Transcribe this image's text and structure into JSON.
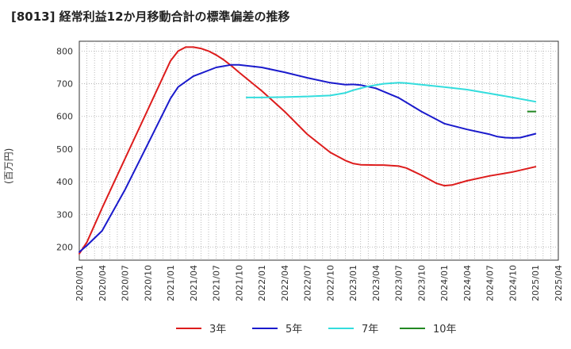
{
  "chart_data": {
    "type": "line",
    "title": "[8013]  経常利益12か月移動合計の標準偏差の推移",
    "ylabel": "(百万円)",
    "xlabel": "",
    "ylim": [
      160,
      830
    ],
    "yticks": [
      200,
      300,
      400,
      500,
      600,
      700,
      800
    ],
    "x_ticks": [
      "2020/01",
      "2020/04",
      "2020/07",
      "2020/10",
      "2021/01",
      "2021/04",
      "2021/07",
      "2021/10",
      "2022/01",
      "2022/04",
      "2022/07",
      "2022/10",
      "2023/01",
      "2023/04",
      "2023/07",
      "2023/10",
      "2024/01",
      "2024/04",
      "2024/07",
      "2024/10",
      "2025/01",
      "2025/04"
    ],
    "x_range": [
      "2020/01",
      "2025/04"
    ],
    "grid": true,
    "legend_position": "bottom",
    "series": [
      {
        "name": "3年",
        "color": "#dd1c1c",
        "points": [
          [
            "2020/01",
            180
          ],
          [
            "2020/02",
            215
          ],
          [
            "2020/04",
            320
          ],
          [
            "2020/07",
            470
          ],
          [
            "2020/10",
            620
          ],
          [
            "2021/01",
            770
          ],
          [
            "2021/02",
            800
          ],
          [
            "2021/03",
            812
          ],
          [
            "2021/04",
            812
          ],
          [
            "2021/05",
            808
          ],
          [
            "2021/06",
            800
          ],
          [
            "2021/07",
            788
          ],
          [
            "2021/08",
            773
          ],
          [
            "2021/09",
            755
          ],
          [
            "2021/10",
            735
          ],
          [
            "2022/01",
            678
          ],
          [
            "2022/04",
            615
          ],
          [
            "2022/07",
            545
          ],
          [
            "2022/10",
            490
          ],
          [
            "2022/12",
            465
          ],
          [
            "2023/01",
            456
          ],
          [
            "2023/02",
            452
          ],
          [
            "2023/04",
            451
          ],
          [
            "2023/05",
            451
          ],
          [
            "2023/07",
            448
          ],
          [
            "2023/08",
            442
          ],
          [
            "2023/10",
            420
          ],
          [
            "2023/12",
            395
          ],
          [
            "2024/01",
            388
          ],
          [
            "2024/02",
            390
          ],
          [
            "2024/04",
            403
          ],
          [
            "2024/07",
            418
          ],
          [
            "2024/10",
            430
          ],
          [
            "2025/01",
            446
          ]
        ]
      },
      {
        "name": "5年",
        "color": "#1a1acc",
        "points": [
          [
            "2020/01",
            185
          ],
          [
            "2020/02",
            205
          ],
          [
            "2020/04",
            250
          ],
          [
            "2020/07",
            375
          ],
          [
            "2020/10",
            515
          ],
          [
            "2021/01",
            655
          ],
          [
            "2021/02",
            690
          ],
          [
            "2021/04",
            723
          ],
          [
            "2021/07",
            750
          ],
          [
            "2021/09",
            758
          ],
          [
            "2021/10",
            758
          ],
          [
            "2022/01",
            750
          ],
          [
            "2022/04",
            735
          ],
          [
            "2022/07",
            718
          ],
          [
            "2022/10",
            703
          ],
          [
            "2022/12",
            697
          ],
          [
            "2023/01",
            698
          ],
          [
            "2023/02",
            696
          ],
          [
            "2023/04",
            686
          ],
          [
            "2023/07",
            657
          ],
          [
            "2023/10",
            615
          ],
          [
            "2024/01",
            578
          ],
          [
            "2024/04",
            560
          ],
          [
            "2024/07",
            545
          ],
          [
            "2024/08",
            538
          ],
          [
            "2024/09",
            535
          ],
          [
            "2024/10",
            534
          ],
          [
            "2024/11",
            535
          ],
          [
            "2025/01",
            547
          ]
        ]
      },
      {
        "name": "7年",
        "color": "#33dddd",
        "points": [
          [
            "2021/11",
            658
          ],
          [
            "2022/01",
            658
          ],
          [
            "2022/04",
            659
          ],
          [
            "2022/07",
            661
          ],
          [
            "2022/10",
            664
          ],
          [
            "2022/12",
            672
          ],
          [
            "2023/01",
            680
          ],
          [
            "2023/03",
            692
          ],
          [
            "2023/05",
            700
          ],
          [
            "2023/07",
            703
          ],
          [
            "2023/08",
            702
          ],
          [
            "2023/10",
            697
          ],
          [
            "2024/01",
            690
          ],
          [
            "2024/04",
            682
          ],
          [
            "2024/07",
            670
          ],
          [
            "2024/10",
            658
          ],
          [
            "2025/01",
            645
          ]
        ]
      },
      {
        "name": "10年",
        "color": "#228822",
        "points": [
          [
            "2024/12",
            615
          ],
          [
            "2025/01",
            615
          ]
        ]
      }
    ]
  }
}
